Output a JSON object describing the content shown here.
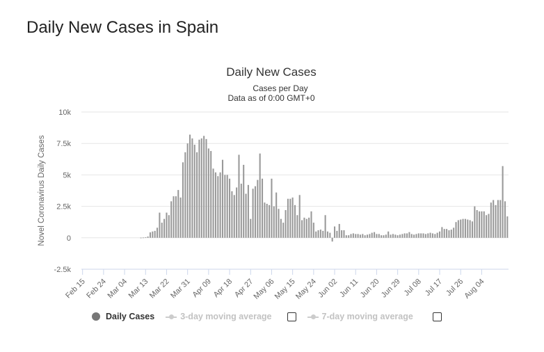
{
  "page": {
    "heading": "Daily New Cases in Spain"
  },
  "chart_data": {
    "type": "bar",
    "title": "Daily New Cases",
    "subtitle_lines": [
      "Cases per Day",
      "Data as of 0:00 GMT+0"
    ],
    "ylabel": "Novel Coronavirus Daily Cases",
    "xlabel": "",
    "ylim": [
      -2500,
      10000
    ],
    "yticks": [
      -2500,
      0,
      2500,
      5000,
      7500,
      10000
    ],
    "ytick_labels": [
      "-2.5k",
      "0",
      "2.5k",
      "5k",
      "7.5k",
      "10k"
    ],
    "xtick_labels": [
      "Feb 15",
      "Feb 24",
      "Mar 04",
      "Mar 13",
      "Mar 22",
      "Mar 31",
      "Apr 09",
      "Apr 18",
      "Apr 27",
      "May 06",
      "May 15",
      "May 24",
      "Jun 02",
      "Jun 11",
      "Jun 20",
      "Jun 29",
      "Jul 08",
      "Jul 17",
      "Jul 26",
      "Aug 04"
    ],
    "grid": true,
    "legend_position": "bottom-left",
    "colors": {
      "bars": "#999999",
      "grid": "#e6e6e6",
      "axis": "#ccd6eb",
      "text": "#666666",
      "title": "#333333"
    },
    "start_date": "Feb 15",
    "series": [
      {
        "name": "Daily Cases",
        "values": [
          0,
          0,
          0,
          0,
          0,
          0,
          0,
          0,
          0,
          0,
          0,
          0,
          0,
          0,
          0,
          0,
          0,
          0,
          0,
          0,
          0,
          0,
          0,
          0,
          0,
          10,
          20,
          40,
          100,
          430,
          500,
          550,
          800,
          2000,
          1200,
          1500,
          2000,
          1800,
          2900,
          3300,
          3300,
          3800,
          3200,
          6000,
          6800,
          7500,
          8200,
          7900,
          7400,
          6800,
          7800,
          7900,
          8100,
          7850,
          7100,
          6900,
          5500,
          5200,
          4900,
          5200,
          6200,
          5000,
          5000,
          4700,
          3700,
          3400,
          4000,
          6600,
          4300,
          5800,
          3500,
          4200,
          1500,
          3900,
          4100,
          4600,
          6700,
          4700,
          2800,
          2700,
          2600,
          4700,
          2500,
          3600,
          2300,
          1500,
          1200,
          2200,
          3100,
          3100,
          3200,
          2600,
          1800,
          3400,
          1400,
          1600,
          1500,
          1600,
          2100,
          1200,
          500,
          600,
          650,
          550,
          1800,
          500,
          400,
          -300,
          900,
          550,
          1100,
          600,
          600,
          200,
          200,
          300,
          350,
          300,
          300,
          250,
          300,
          200,
          250,
          300,
          400,
          450,
          300,
          300,
          200,
          200,
          250,
          500,
          250,
          300,
          250,
          200,
          250,
          300,
          350,
          350,
          450,
          300,
          250,
          300,
          350,
          350,
          350,
          300,
          350,
          400,
          350,
          300,
          400,
          500,
          850,
          700,
          700,
          600,
          650,
          800,
          1250,
          1400,
          1450,
          1500,
          1500,
          1450,
          1400,
          1300,
          2500,
          2200,
          2100,
          2100,
          2100,
          1800,
          1900,
          2800,
          3000,
          2600,
          3000,
          3000,
          5700,
          2900,
          1700
        ]
      }
    ]
  },
  "legend": {
    "daily_cases_label": "Daily Cases",
    "avg3_label": "3-day moving average",
    "avg7_label": "7-day moving average"
  }
}
